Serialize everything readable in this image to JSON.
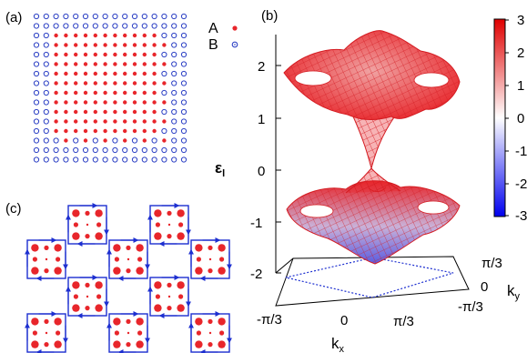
{
  "panels": {
    "a": "(a)",
    "b": "(b)",
    "c": "(c)"
  },
  "legend": {
    "a_label": "A",
    "b_label": "B"
  },
  "axes": {
    "z_label_main": "ε",
    "z_label_sub": "l",
    "z_ticks": [
      "2",
      "1",
      "0",
      "-1",
      "-2"
    ],
    "kx_ticks": [
      "-π/3",
      "0",
      "π/3"
    ],
    "ky_ticks": [
      "π/3",
      "0",
      "-π/3"
    ],
    "kx_label_main": "k",
    "kx_label_sub": "x",
    "ky_label_main": "k",
    "ky_label_sub": "y"
  },
  "colorbar": {
    "ticks": [
      "3",
      "2",
      "1",
      "0",
      "-1",
      "-2",
      "-3"
    ]
  },
  "colors": {
    "site_a": "#e8262b",
    "site_b": "#2b3fc4",
    "surface_pos": "#e8262b",
    "surface_neg": "#5a5ce0",
    "loop": "#1d2fd0"
  }
}
